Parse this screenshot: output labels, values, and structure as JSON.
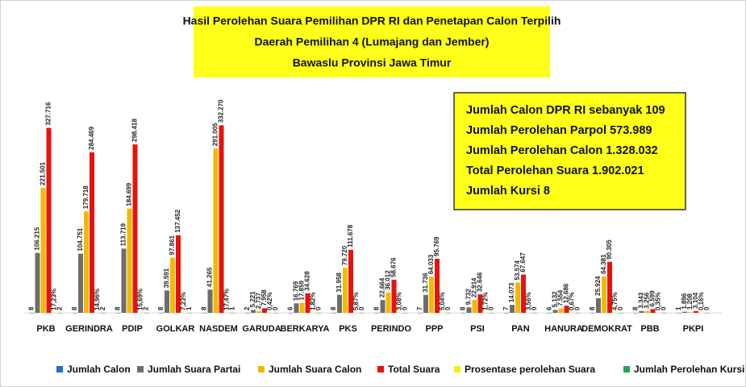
{
  "chart_data": {
    "type": "bar",
    "title": [
      "Hasil Perolehan Suara Pemilihan DPR RI dan Penetapan Calon Terpilih",
      "Daerah Pemilihan 4 (Lumajang dan Jember)",
      "Bawaslu Provinsi Jawa Timur"
    ],
    "annotations": [
      "Jumlah Calon DPR RI  sebanyak 109",
      "Jumlah Perolehan Parpol 573.989",
      "Jumlah Perolehan Calon 1.328.032",
      "Total Perolehan Suara 1.902.021",
      "Jumlah Kursi 8"
    ],
    "categories": [
      "PKB",
      "GERINDRA",
      "PDIP",
      "GOLKAR",
      "NASDEM",
      "GARUDA",
      "BERKARYA",
      "PKS",
      "PERINDO",
      "PPP",
      "PSI",
      "PAN",
      "HANURA",
      "DEMOKRAT",
      "PBB",
      "PKPI"
    ],
    "ylim": [
      0,
      340000
    ],
    "series": [
      {
        "name": "Jumlah Calon",
        "color": "#1f6fd0",
        "values": [
          8,
          8,
          8,
          8,
          8,
          2,
          6,
          8,
          8,
          7,
          8,
          7,
          6,
          8,
          8,
          1
        ]
      },
      {
        "name": "Jumlah Suara Partai",
        "color": "#6d6d6d",
        "values": [
          106215,
          104751,
          113719,
          39591,
          41265,
          5221,
          16769,
          31958,
          22664,
          31736,
          9732,
          14073,
          5132,
          25924,
          3343,
          1896
        ],
        "value_labels": [
          "106.215",
          "104.751",
          "113.719",
          "39.591",
          "41.265",
          "5.221",
          "16.769",
          "31.958",
          "22.664",
          "31.736",
          "9.732",
          "14.073",
          "5.132",
          "25.924",
          "3.343",
          "1.896"
        ]
      },
      {
        "name": "Jumlah Suara Calon",
        "color": "#f5b800",
        "values": [
          221501,
          179718,
          184699,
          97861,
          291005,
          2737,
          17859,
          79720,
          36012,
          64033,
          22914,
          53574,
          7554,
          64381,
          3256,
          1208
        ],
        "value_labels": [
          "221.501",
          "179.718",
          "184.699",
          "97.861",
          "291.005",
          "2.737",
          "17.859",
          "79.720",
          "36.012",
          "64.033",
          "22.914",
          "53.574",
          "7.554",
          "64.381",
          "3.256",
          "1.208"
        ]
      },
      {
        "name": "Total Suara",
        "color": "#e8120c",
        "values": [
          327716,
          284469,
          298418,
          137452,
          332270,
          7958,
          34628,
          111678,
          58676,
          95769,
          32646,
          67647,
          12686,
          90305,
          6599,
          3104
        ],
        "value_labels": [
          "327.716",
          "284.469",
          "298.418",
          "137.452",
          "332.270",
          "7.958",
          "34.628",
          "111.678",
          "58.676",
          "95.769",
          "32.646",
          "67.647",
          "12.686",
          "90.305",
          "6.599",
          "3.104"
        ]
      },
      {
        "name": "Prosentase perolehan Suara",
        "color": "#f2f200",
        "values": [
          17.23,
          14.96,
          15.69,
          7.23,
          17.47,
          0.42,
          1.82,
          5.87,
          3.08,
          5.04,
          1.72,
          3.56,
          0.67,
          4.75,
          0.35,
          0.16
        ],
        "value_labels": [
          "17,23%",
          "14,96%",
          "15,69%",
          "7,23%",
          "17,47%",
          "0,42%",
          "1,82%",
          "5,87%",
          "3,08%",
          "5,04%",
          "1,72%",
          "3,56%",
          "0,67%",
          "4,75%",
          "0,35%",
          "0,16%"
        ]
      },
      {
        "name": "Jumlah Perolehan Kursi",
        "color": "#1fa85a",
        "values": [
          2,
          2,
          2,
          1,
          1,
          0,
          0,
          0,
          0,
          0,
          0,
          0,
          0,
          0,
          0,
          0
        ]
      }
    ]
  }
}
